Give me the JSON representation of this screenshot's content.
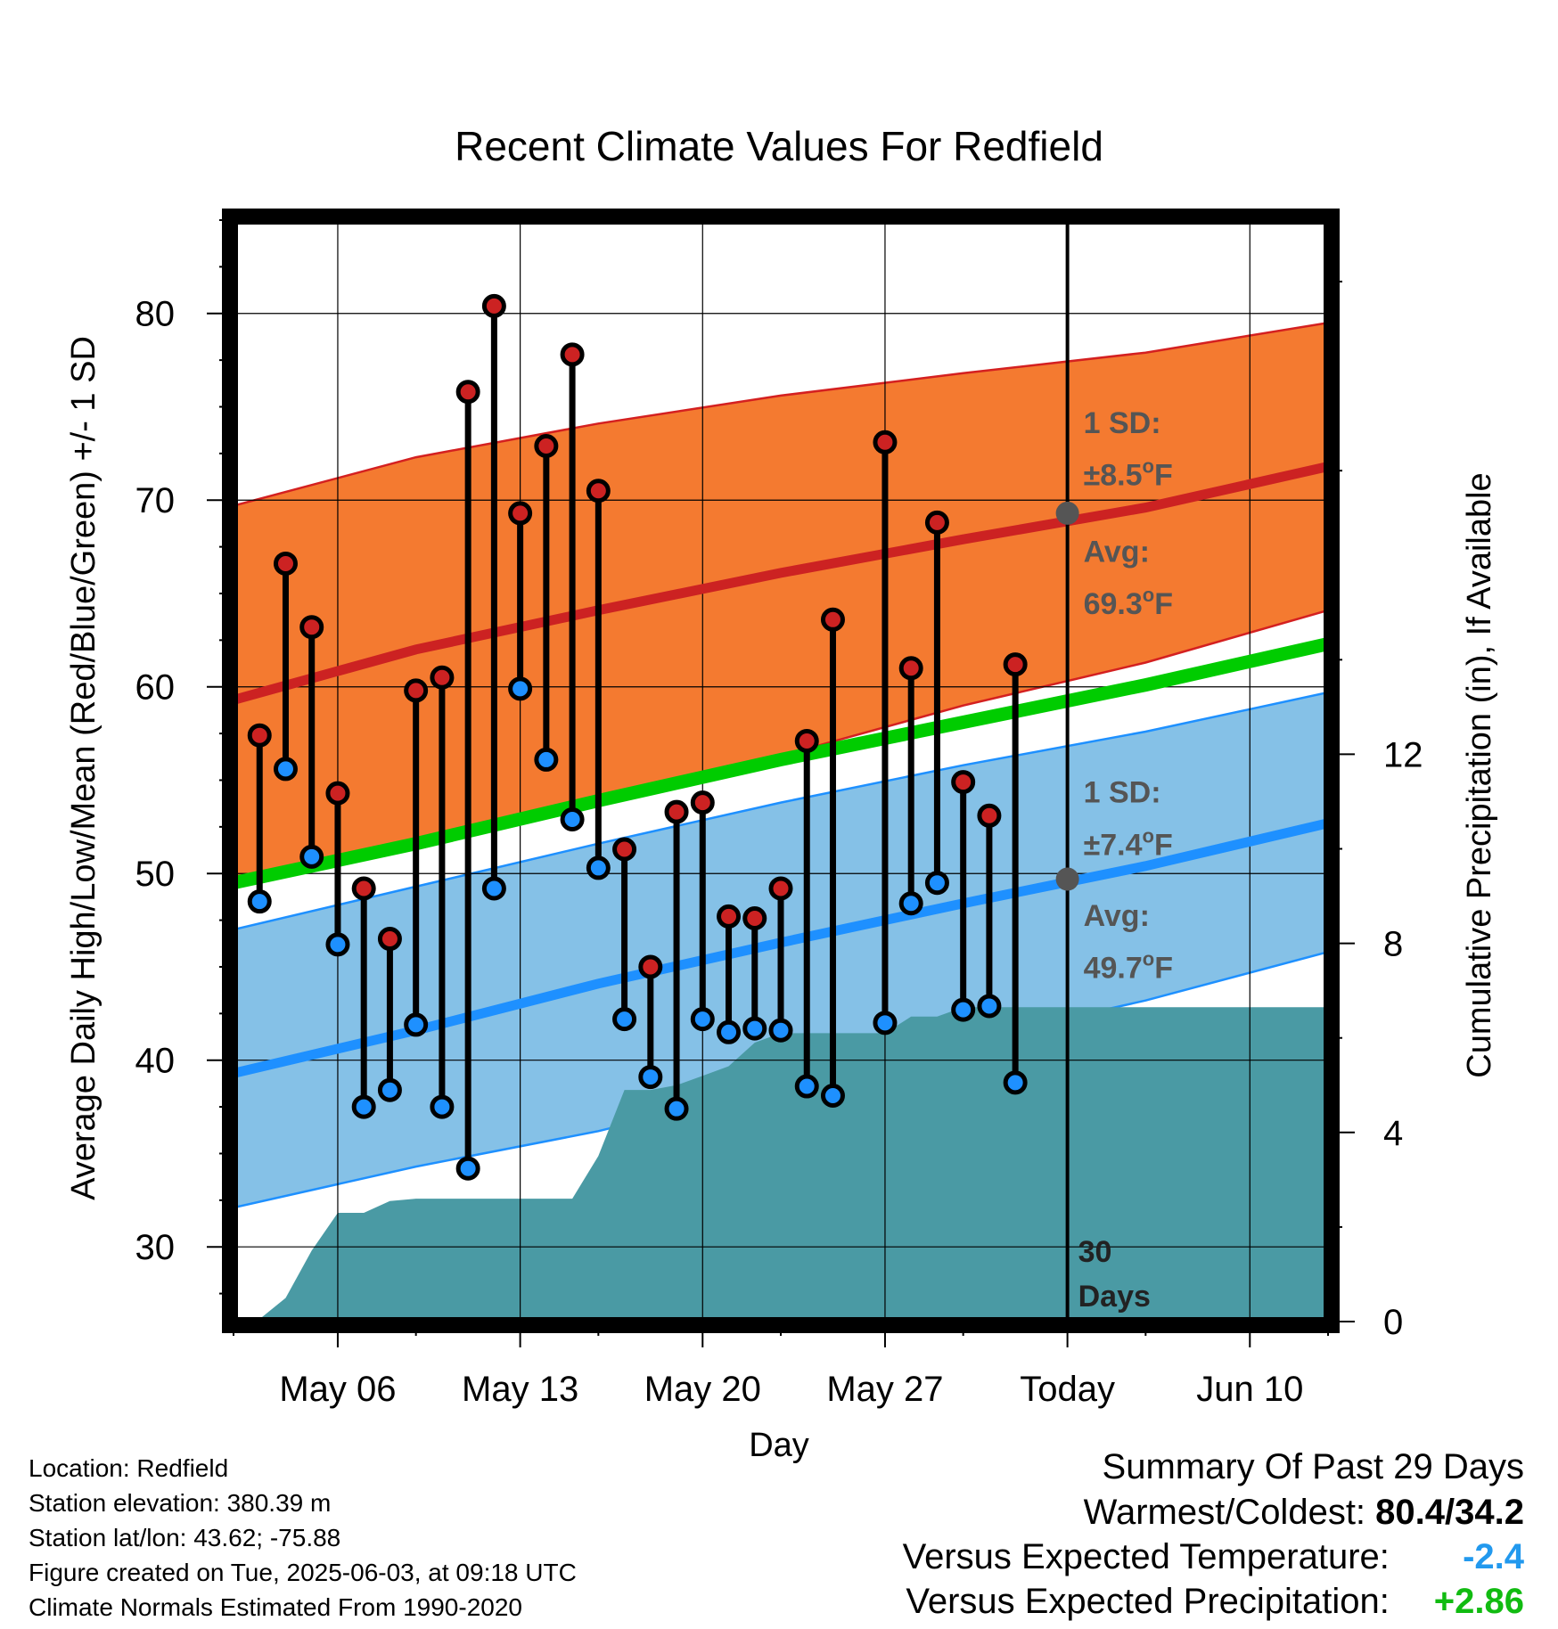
{
  "title": "Recent Climate Values For Redfield",
  "chart_data": {
    "type": "line",
    "title": "Recent Climate Values For Redfield",
    "xlabel": "Day",
    "ylabel_left": "Average Daily High/Low/Mean (Red/Blue/Green) +/- 1 SD",
    "ylabel_right": "Cumulative Precipitation (in), If Available",
    "ylim_left": [
      26,
      85
    ],
    "ylim_right": [
      0,
      23.3
    ],
    "yticks_left": [
      30,
      40,
      50,
      60,
      70,
      80
    ],
    "yticks_right": [
      0,
      4,
      8,
      12
    ],
    "x_domain": [
      "May 02",
      "Jun 13"
    ],
    "xtick_labels": [
      {
        "date": "May 06",
        "label": "May 06"
      },
      {
        "date": "May 13",
        "label": "May 13"
      },
      {
        "date": "May 20",
        "label": "May 20"
      },
      {
        "date": "May 27",
        "label": "May 27"
      },
      {
        "date": "Jun 03",
        "label": "Today"
      },
      {
        "date": "Jun 10",
        "label": "Jun 10"
      }
    ],
    "today": "Jun 03",
    "normals": {
      "dates": [
        "May 02",
        "May 09",
        "May 16",
        "May 23",
        "May 30",
        "Jun 06",
        "Jun 13"
      ],
      "high_plus_sd": [
        69.7,
        72.3,
        74.1,
        75.6,
        76.8,
        77.9,
        79.5
      ],
      "high_mean": [
        59.3,
        62.0,
        64.1,
        66.1,
        67.9,
        69.6,
        71.8
      ],
      "high_minus_sd": [
        49.5,
        51.3,
        53.7,
        56.3,
        59.0,
        61.3,
        64.1
      ],
      "daily_mean": [
        49.5,
        51.6,
        53.9,
        56.1,
        58.1,
        60.1,
        62.3
      ],
      "low_plus_sd": [
        47.0,
        49.3,
        51.6,
        53.8,
        55.8,
        57.6,
        59.7
      ],
      "low_mean": [
        39.3,
        41.6,
        44.1,
        46.3,
        48.4,
        50.4,
        52.7
      ],
      "low_minus_sd": [
        32.1,
        34.3,
        36.2,
        38.6,
        41.0,
        43.2,
        45.8
      ]
    },
    "high_label": {
      "sd": "1 SD:",
      "sd_value": "±8.5°F",
      "avg": "Avg:",
      "avg_value": "69.3°F",
      "avg_num": 69.3
    },
    "low_label": {
      "sd": "1 SD:",
      "sd_value": "±7.4°F",
      "avg": "Avg:",
      "avg_value": "49.7°F",
      "avg_num": 49.7
    },
    "days_label": [
      "30",
      "Days"
    ],
    "series": [
      {
        "name": "High",
        "color": "#cc2222"
      },
      {
        "name": "Low",
        "color": "#2299ee"
      },
      {
        "name": "Mean",
        "color": "#00cc00"
      }
    ],
    "observations": [
      {
        "date": "May 03",
        "high": 57.4,
        "low": 48.5
      },
      {
        "date": "May 04",
        "high": 66.6,
        "low": 55.6
      },
      {
        "date": "May 05",
        "high": 63.2,
        "low": 50.9
      },
      {
        "date": "May 06",
        "high": 54.3,
        "low": 46.2
      },
      {
        "date": "May 07",
        "high": 49.2,
        "low": 37.5
      },
      {
        "date": "May 08",
        "high": 46.5,
        "low": 38.4
      },
      {
        "date": "May 09",
        "high": 59.8,
        "low": 41.9
      },
      {
        "date": "May 10",
        "high": 60.5,
        "low": 37.5
      },
      {
        "date": "May 11",
        "high": 75.8,
        "low": 34.2
      },
      {
        "date": "May 12",
        "high": 80.4,
        "low": 49.2
      },
      {
        "date": "May 13",
        "high": 69.3,
        "low": 59.9
      },
      {
        "date": "May 14",
        "high": 72.9,
        "low": 56.1
      },
      {
        "date": "May 15",
        "high": 77.8,
        "low": 52.9
      },
      {
        "date": "May 16",
        "high": 70.5,
        "low": 50.3
      },
      {
        "date": "May 17",
        "high": 51.3,
        "low": 42.2
      },
      {
        "date": "May 18",
        "high": 45.0,
        "low": 39.1
      },
      {
        "date": "May 19",
        "high": 53.3,
        "low": 37.4
      },
      {
        "date": "May 20",
        "high": 53.8,
        "low": 42.2
      },
      {
        "date": "May 21",
        "high": 47.7,
        "low": 41.5
      },
      {
        "date": "May 22",
        "high": 47.6,
        "low": 41.7
      },
      {
        "date": "May 23",
        "high": 49.2,
        "low": 41.6
      },
      {
        "date": "May 24",
        "high": 57.1,
        "low": 38.6
      },
      {
        "date": "May 25",
        "high": 63.6,
        "low": 38.1
      },
      {
        "date": "May 27",
        "high": 73.1,
        "low": 42.0
      },
      {
        "date": "May 28",
        "high": 61.0,
        "low": 48.4
      },
      {
        "date": "May 29",
        "high": 68.8,
        "low": 49.5
      },
      {
        "date": "May 30",
        "high": 54.9,
        "low": 42.7
      },
      {
        "date": "May 31",
        "high": 53.1,
        "low": 42.9
      },
      {
        "date": "Jun 01",
        "high": 61.2,
        "low": 38.8
      }
    ],
    "precipitation": {
      "dates": [
        "May 02",
        "May 03",
        "May 04",
        "May 05",
        "May 06",
        "May 07",
        "May 08",
        "May 09",
        "May 10",
        "May 15",
        "May 16",
        "May 17",
        "May 18",
        "May 19",
        "May 20",
        "May 21",
        "May 22",
        "May 23",
        "May 24",
        "May 27",
        "May 28",
        "May 29",
        "May 30",
        "May 31",
        "Jun 01",
        "Jun 13"
      ],
      "values": [
        0.0,
        0.05,
        0.5,
        1.5,
        2.3,
        2.3,
        2.55,
        2.6,
        2.6,
        2.6,
        3.5,
        4.9,
        4.9,
        5.0,
        5.2,
        5.4,
        5.9,
        6.1,
        6.1,
        6.1,
        6.45,
        6.45,
        6.65,
        6.65,
        6.65,
        6.65
      ]
    }
  },
  "footer": {
    "location": "Location: Redfield",
    "elevation": "Station elevation: 380.39 m",
    "latlon": "Station lat/lon: 43.62; -75.88",
    "created": "Figure created on Tue, 2025-06-03, at 09:18 UTC",
    "normals": "Climate Normals Estimated From 1990-2020"
  },
  "summary": {
    "heading": "Summary Of Past 29 Days",
    "warmest_label": "Warmest/Coldest:",
    "warmest_value": "80.4/34.2",
    "temp_label": "Versus Expected Temperature:",
    "temp_value": "-2.4",
    "precip_label": "Versus Expected Precipitation:",
    "precip_value": "+2.86",
    "colors": {
      "temp": "#2299ee",
      "precip": "#11bb11"
    }
  }
}
